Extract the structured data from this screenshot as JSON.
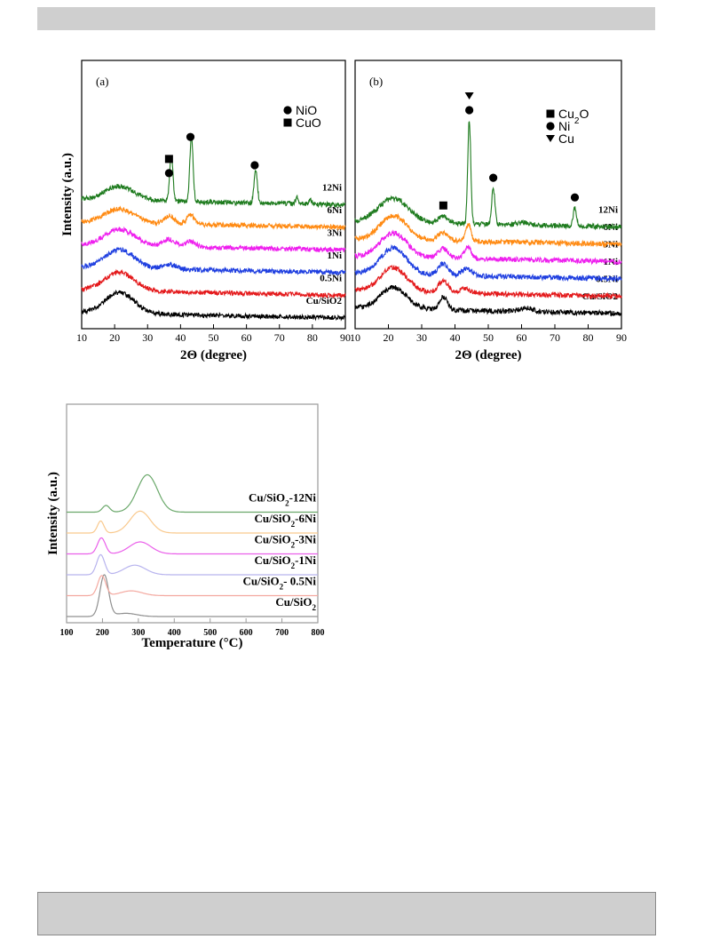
{
  "chart_data": [
    {
      "type": "line",
      "panel_label": "(a)",
      "xlabel": "2Θ (degree)",
      "ylabel": "Intensity (a.u.)",
      "xlim": [
        10,
        90
      ],
      "xticks": [
        10,
        20,
        30,
        40,
        50,
        60,
        70,
        80,
        90
      ],
      "legend": [
        {
          "symbol": "circle",
          "label": "NiO"
        },
        {
          "symbol": "square",
          "label": "CuO"
        }
      ],
      "legend_position": "top-right",
      "peak_markers": [
        {
          "x": 36.5,
          "symbols": [
            "square",
            "circle"
          ]
        },
        {
          "x": 43.0,
          "symbols": [
            "circle"
          ]
        },
        {
          "x": 62.5,
          "symbols": [
            "circle"
          ]
        }
      ],
      "series": [
        {
          "label": "Cu/SiO2",
          "color": "#000000",
          "offset": 0,
          "peaks": [
            {
              "x": 21.5,
              "h": 0.9,
              "w": 4.5
            }
          ]
        },
        {
          "label": "0.5Ni",
          "color": "#e41a1c",
          "offset": 1,
          "peaks": [
            {
              "x": 21.5,
              "h": 0.8,
              "w": 4.5
            }
          ]
        },
        {
          "label": "1Ni",
          "color": "#1f3fe0",
          "offset": 2,
          "peaks": [
            {
              "x": 21.5,
              "h": 0.8,
              "w": 4.5
            },
            {
              "x": 36.5,
              "h": 0.2,
              "w": 2
            }
          ]
        },
        {
          "label": "3Ni",
          "color": "#ee1fee",
          "offset": 3,
          "peaks": [
            {
              "x": 21.5,
              "h": 0.7,
              "w": 4.5
            },
            {
              "x": 36.5,
              "h": 0.3,
              "w": 2
            },
            {
              "x": 43,
              "h": 0.25,
              "w": 1.5
            }
          ]
        },
        {
          "label": "6Ni",
          "color": "#ff8a12",
          "offset": 4,
          "peaks": [
            {
              "x": 21.5,
              "h": 0.6,
              "w": 4.5
            },
            {
              "x": 36.5,
              "h": 0.35,
              "w": 1.5
            },
            {
              "x": 43,
              "h": 0.4,
              "w": 1.2
            }
          ]
        },
        {
          "label": "12Ni",
          "color": "#1e7b1e",
          "offset": 5,
          "peaks": [
            {
              "x": 21.5,
              "h": 0.6,
              "w": 4.5
            },
            {
              "x": 37.2,
              "h": 2.0,
              "w": 0.5
            },
            {
              "x": 43.3,
              "h": 2.8,
              "w": 0.5
            },
            {
              "x": 62.8,
              "h": 1.4,
              "w": 0.5
            },
            {
              "x": 75.3,
              "h": 0.3,
              "w": 0.4
            },
            {
              "x": 79.3,
              "h": 0.2,
              "w": 0.4
            }
          ]
        }
      ]
    },
    {
      "type": "line",
      "panel_label": "(b)",
      "xlabel": "2Θ (degree)",
      "xlim": [
        10,
        90
      ],
      "xticks": [
        10,
        20,
        30,
        40,
        50,
        60,
        70,
        80,
        90
      ],
      "legend": [
        {
          "symbol": "square",
          "label": "Cu",
          "sub": "2",
          "tail": "O"
        },
        {
          "symbol": "circle",
          "label": "Ni"
        },
        {
          "symbol": "triangle",
          "label": "Cu"
        }
      ],
      "legend_position": "top-right",
      "peak_markers": [
        {
          "x": 36.5,
          "symbols": [
            "square"
          ]
        },
        {
          "x": 44.3,
          "symbols": [
            "triangle",
            "circle"
          ]
        },
        {
          "x": 51.5,
          "symbols": [
            "circle"
          ]
        },
        {
          "x": 76.0,
          "symbols": [
            "circle"
          ]
        }
      ],
      "series": [
        {
          "label": "Cu/SiO2",
          "color": "#000000",
          "offset": 0,
          "peaks": [
            {
              "x": 21.5,
              "h": 0.9,
              "w": 4
            },
            {
              "x": 36.5,
              "h": 0.55,
              "w": 1.2
            },
            {
              "x": 61.5,
              "h": 0.15,
              "w": 2
            }
          ]
        },
        {
          "label": "0.5Ni",
          "color": "#e41a1c",
          "offset": 1,
          "peaks": [
            {
              "x": 21.5,
              "h": 1.0,
              "w": 4
            },
            {
              "x": 36.5,
              "h": 0.5,
              "w": 1.5
            },
            {
              "x": 43,
              "h": 0.2,
              "w": 1.5
            }
          ]
        },
        {
          "label": "1Ni",
          "color": "#1f3fe0",
          "offset": 2,
          "peaks": [
            {
              "x": 21.5,
              "h": 1.1,
              "w": 4
            },
            {
              "x": 36.5,
              "h": 0.5,
              "w": 1.5
            },
            {
              "x": 43.5,
              "h": 0.3,
              "w": 1.5
            }
          ]
        },
        {
          "label": "3Ni",
          "color": "#ee1fee",
          "offset": 3,
          "peaks": [
            {
              "x": 21.5,
              "h": 1.0,
              "w": 4
            },
            {
              "x": 36.5,
              "h": 0.4,
              "w": 1.5
            },
            {
              "x": 43.8,
              "h": 0.5,
              "w": 1
            }
          ]
        },
        {
          "label": "6Ni",
          "color": "#ff8a12",
          "offset": 4,
          "peaks": [
            {
              "x": 21.5,
              "h": 1.0,
              "w": 4
            },
            {
              "x": 36.5,
              "h": 0.35,
              "w": 1.5
            },
            {
              "x": 44,
              "h": 0.7,
              "w": 0.8
            }
          ]
        },
        {
          "label": "12Ni",
          "color": "#1e7b1e",
          "offset": 5,
          "peaks": [
            {
              "x": 21.5,
              "h": 1.0,
              "w": 4.5
            },
            {
              "x": 36.5,
              "h": 0.3,
              "w": 1.5
            },
            {
              "x": 44.3,
              "h": 4.3,
              "w": 0.45
            },
            {
              "x": 51.5,
              "h": 1.5,
              "w": 0.5
            },
            {
              "x": 76.0,
              "h": 0.75,
              "w": 0.5
            },
            {
              "x": 60.5,
              "h": 0.1,
              "w": 2
            }
          ]
        }
      ]
    },
    {
      "type": "line",
      "xlabel": "Temperature",
      "xlabel_unit": "(°C)",
      "ylabel": "Intensity (a.u.)",
      "xlim": [
        100,
        800
      ],
      "xticks": [
        100,
        200,
        300,
        400,
        500,
        600,
        700,
        800
      ],
      "series": [
        {
          "label": "Cu/SiO",
          "sub": "2",
          "tail": "",
          "color": "#909090",
          "offset": 0,
          "peaks": [
            {
              "x": 205,
              "h": 1.55,
              "w": 12
            },
            {
              "x": 265,
              "h": 0.12,
              "w": 30
            }
          ]
        },
        {
          "label": "Cu/SiO",
          "sub": "2",
          "tail": "- 0.5Ni",
          "color": "#f4a9a0",
          "offset": 1,
          "peaks": [
            {
              "x": 198,
              "h": 0.75,
              "w": 11
            },
            {
              "x": 280,
              "h": 0.18,
              "w": 30
            }
          ]
        },
        {
          "label": "Cu/SiO",
          "sub": "2",
          "tail": "-1Ni",
          "color": "#b7b3ee",
          "offset": 2,
          "peaks": [
            {
              "x": 195,
              "h": 0.75,
              "w": 11
            },
            {
              "x": 290,
              "h": 0.36,
              "w": 30
            }
          ]
        },
        {
          "label": "Cu/SiO",
          "sub": "2",
          "tail": "-3Ni",
          "color": "#ea5fea",
          "offset": 3,
          "peaks": [
            {
              "x": 197,
              "h": 0.6,
              "w": 11
            },
            {
              "x": 305,
              "h": 0.45,
              "w": 30
            }
          ]
        },
        {
          "label": "Cu/SiO",
          "sub": "2",
          "tail": "-6Ni",
          "color": "#f9c98d",
          "offset": 4,
          "peaks": [
            {
              "x": 195,
              "h": 0.45,
              "w": 9
            },
            {
              "x": 305,
              "h": 0.82,
              "w": 28
            }
          ]
        },
        {
          "label": "Cu/SiO",
          "sub": "2",
          "tail": "-12Ni",
          "color": "#6aa86a",
          "offset": 5,
          "peaks": [
            {
              "x": 210,
              "h": 0.25,
              "w": 10
            },
            {
              "x": 325,
              "h": 1.4,
              "w": 28
            }
          ]
        }
      ]
    }
  ]
}
